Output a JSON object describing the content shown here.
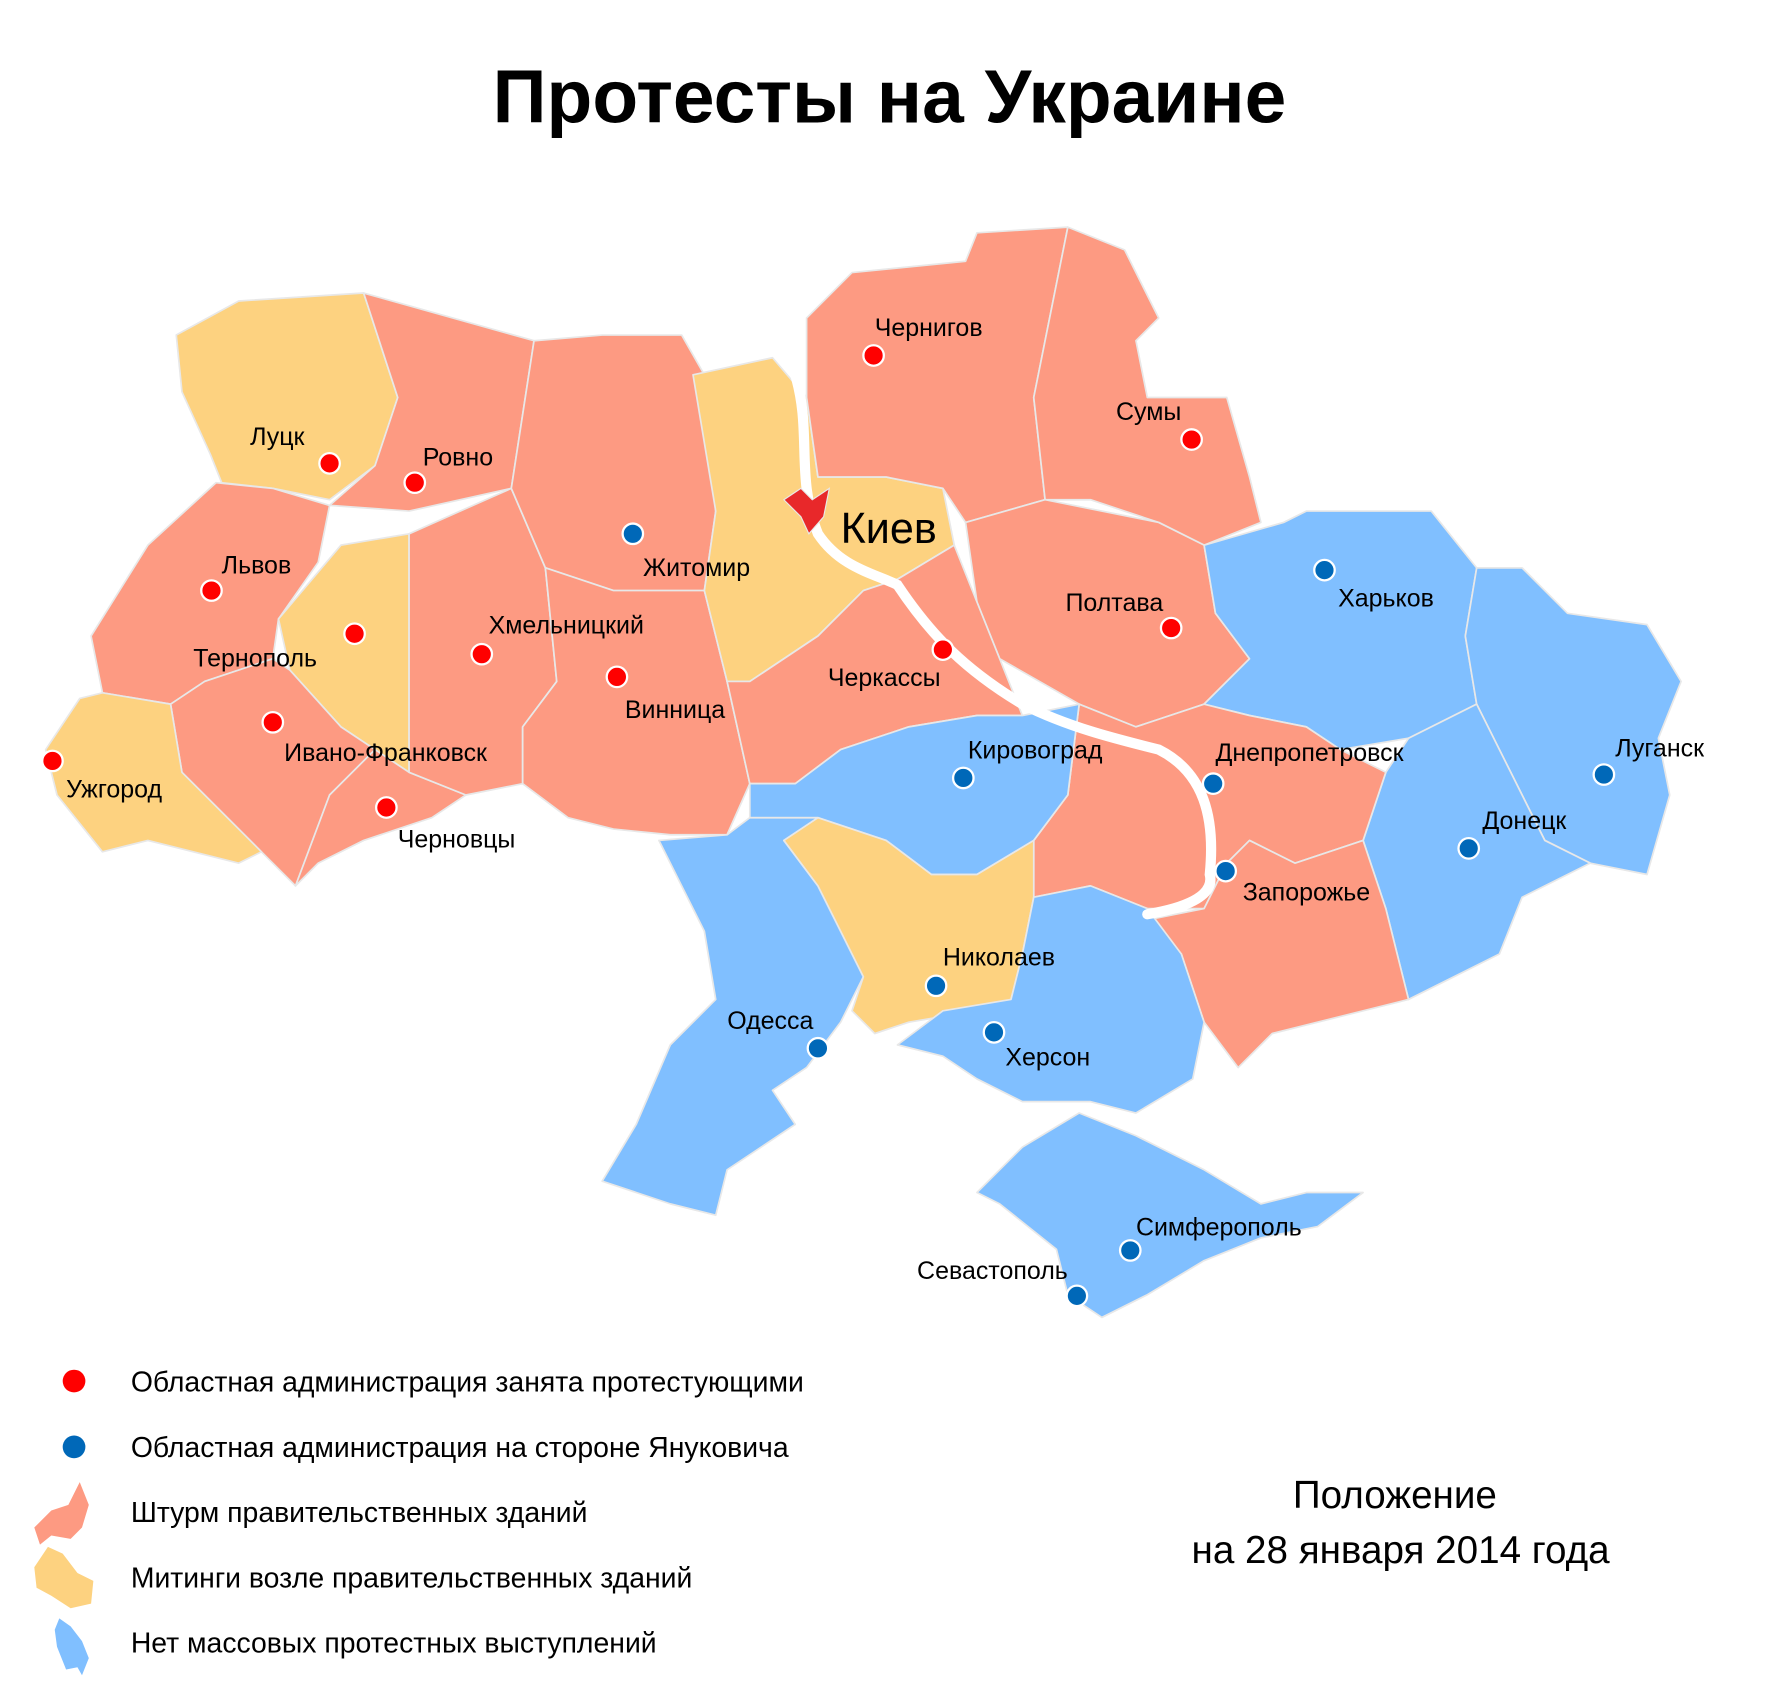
{
  "title": "Протесты на Украине",
  "colors": {
    "storm": "#fd9a82",
    "rally": "#fdd280",
    "none": "#80bfff",
    "occupied_dot": "#ff0000",
    "yanukovych_dot": "#0068b8",
    "kyiv_city": "#e8282a"
  },
  "capital_label": "Киев",
  "cities": [
    {
      "name": "Луцк",
      "status": "occupied"
    },
    {
      "name": "Ровно",
      "status": "occupied"
    },
    {
      "name": "Львов",
      "status": "occupied"
    },
    {
      "name": "Тернополь",
      "status": "occupied"
    },
    {
      "name": "Ивано-Франковск",
      "status": "occupied"
    },
    {
      "name": "Ужгород",
      "status": "occupied"
    },
    {
      "name": "Черновцы",
      "status": "occupied"
    },
    {
      "name": "Хмельницкий",
      "status": "occupied"
    },
    {
      "name": "Житомир",
      "status": "yanukovych"
    },
    {
      "name": "Винница",
      "status": "occupied"
    },
    {
      "name": "Чернигов",
      "status": "occupied"
    },
    {
      "name": "Сумы",
      "status": "occupied"
    },
    {
      "name": "Полтава",
      "status": "occupied"
    },
    {
      "name": "Черкассы",
      "status": "occupied"
    },
    {
      "name": "Харьков",
      "status": "yanukovych"
    },
    {
      "name": "Луганск",
      "status": "yanukovych"
    },
    {
      "name": "Донецк",
      "status": "yanukovych"
    },
    {
      "name": "Днепропетровск",
      "status": "yanukovych"
    },
    {
      "name": "Запорожье",
      "status": "yanukovych"
    },
    {
      "name": "Кировоград",
      "status": "yanukovych"
    },
    {
      "name": "Николаев",
      "status": "yanukovych"
    },
    {
      "name": "Одесса",
      "status": "yanukovych"
    },
    {
      "name": "Херсон",
      "status": "yanukovych"
    },
    {
      "name": "Симферополь",
      "status": "yanukovych"
    },
    {
      "name": "Севастополь",
      "status": "yanukovych"
    }
  ],
  "legend": [
    "Областная администрация занята протестующими",
    "Областная администрация на стороне Януковича",
    "Штурм правительственных зданий",
    "Митинги возле правительственных зданий",
    "Нет массовых протестных выступлений"
  ],
  "date_note": {
    "line1": "Положение",
    "line2": "на 28 января 2014 года"
  }
}
